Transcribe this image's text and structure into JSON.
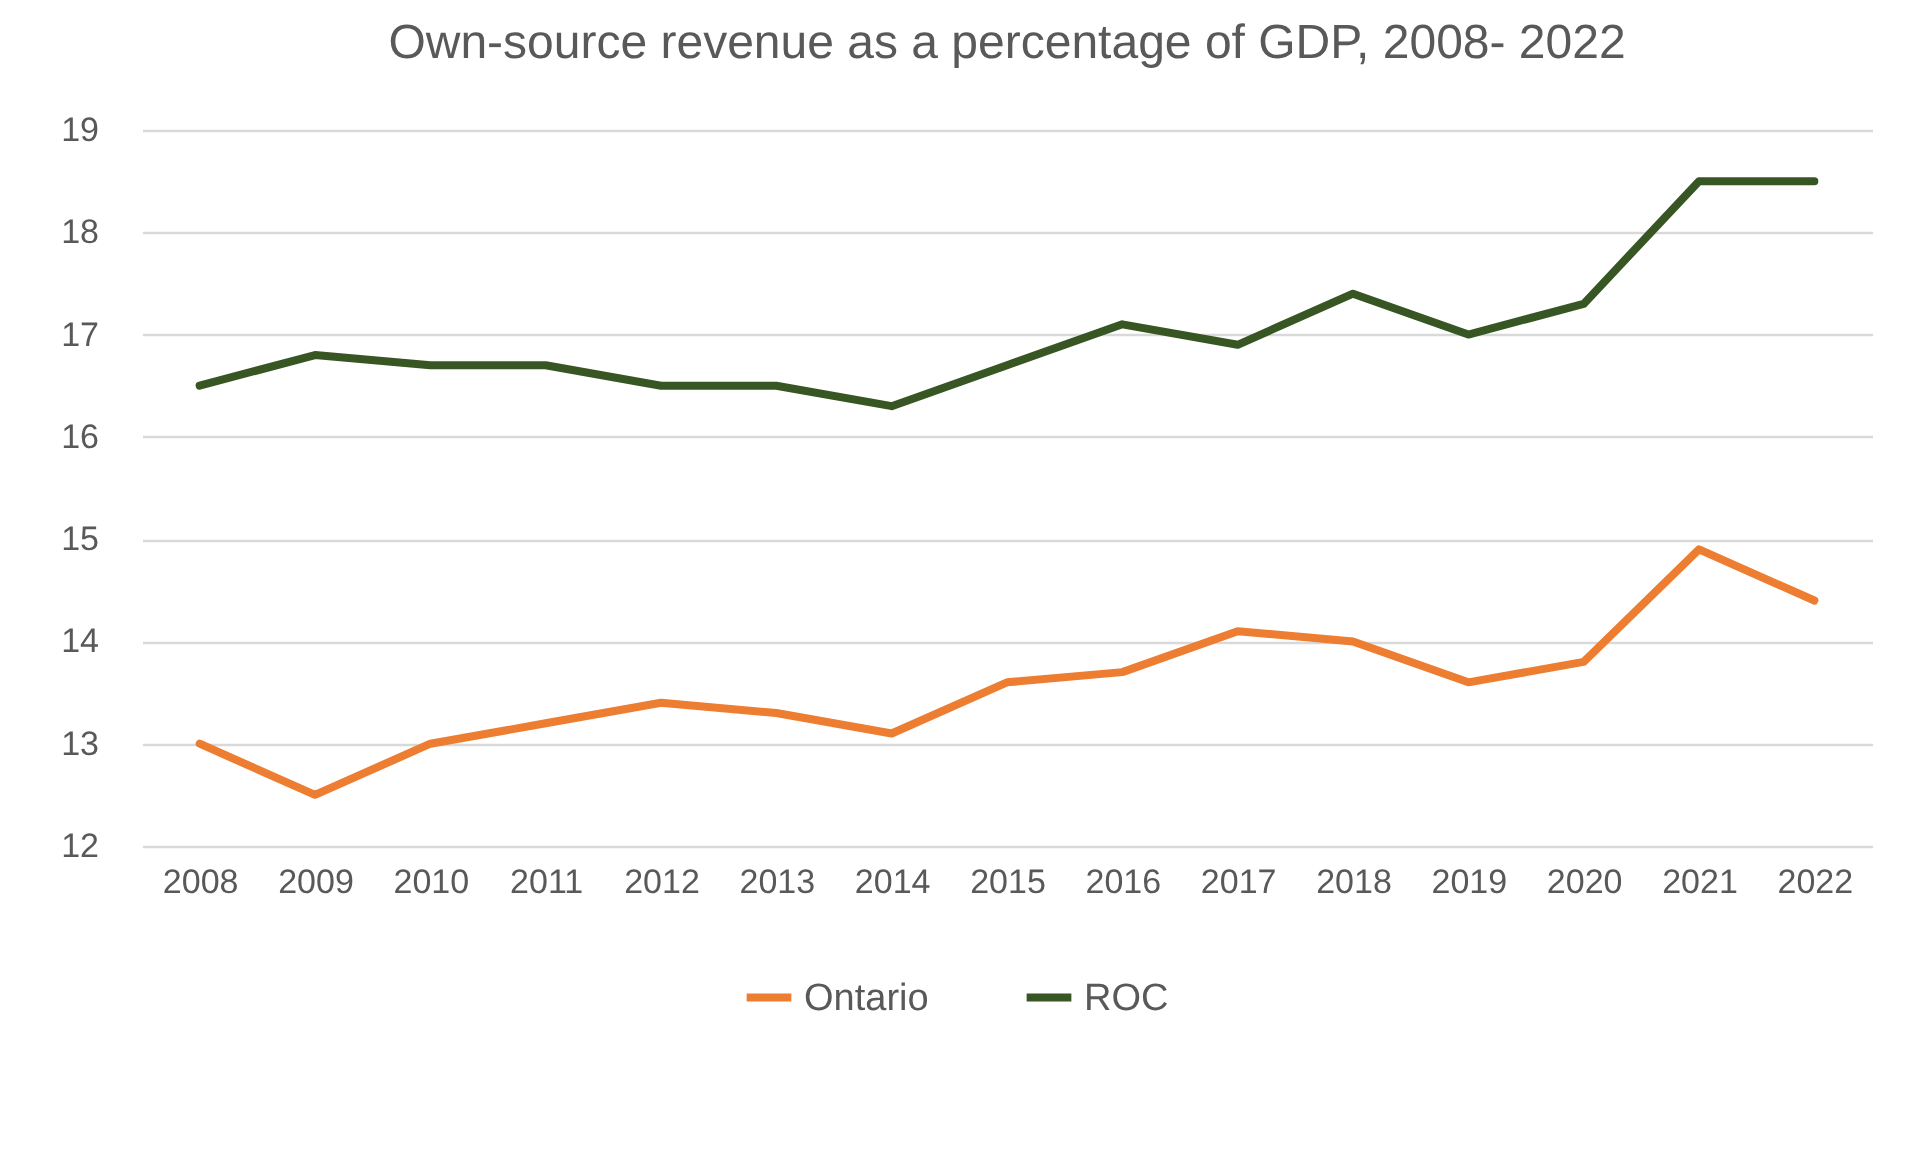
{
  "chart_data": {
    "type": "line",
    "title": "Own-source revenue as a percentage of GDP, 2008- 2022",
    "categories": [
      "2008",
      "2009",
      "2010",
      "2011",
      "2012",
      "2013",
      "2014",
      "2015",
      "2016",
      "2017",
      "2018",
      "2019",
      "2020",
      "2021",
      "2022"
    ],
    "series": [
      {
        "name": "Ontario",
        "color": "#ed7d31",
        "values": [
          13.0,
          12.5,
          13.0,
          13.2,
          13.4,
          13.3,
          13.1,
          13.6,
          13.7,
          14.1,
          14.0,
          13.6,
          13.8,
          14.9,
          14.4
        ]
      },
      {
        "name": "ROC",
        "color": "#375623",
        "values": [
          16.5,
          16.8,
          16.7,
          16.7,
          16.5,
          16.5,
          16.3,
          16.7,
          17.1,
          16.9,
          17.4,
          17.0,
          17.3,
          18.5,
          18.5
        ]
      }
    ],
    "ylim": [
      12,
      19
    ],
    "yticks": [
      12,
      13,
      14,
      15,
      16,
      17,
      18,
      19
    ],
    "grid": "y",
    "legend": "bottom",
    "marker": "none",
    "line_style": "solid"
  }
}
